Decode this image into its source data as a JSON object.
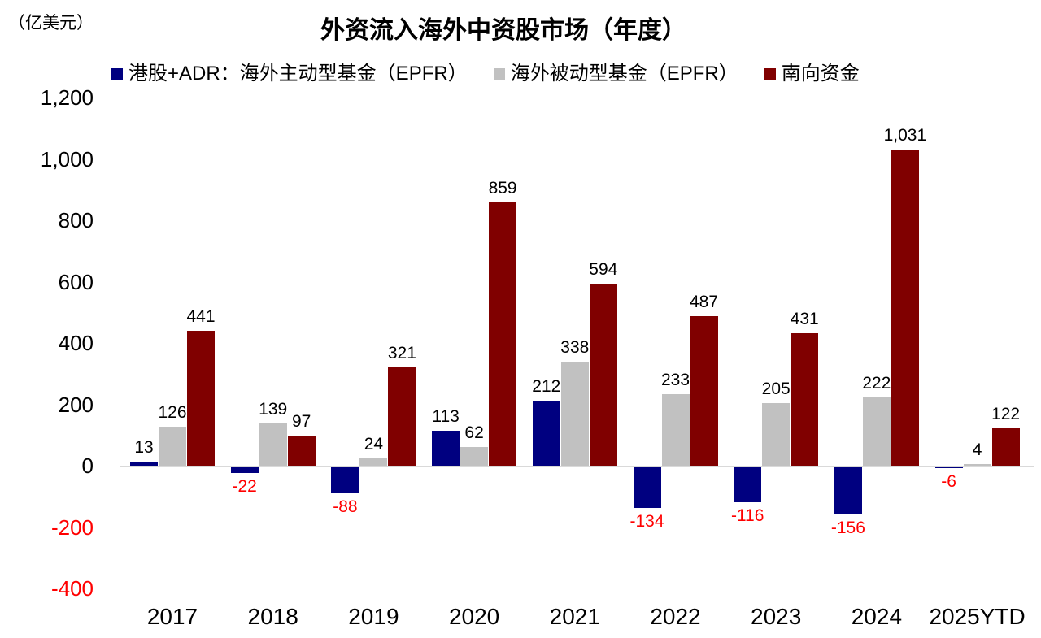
{
  "chart_data": {
    "type": "bar",
    "title": "外资流入海外中资股市场（年度）",
    "unit_label": "（亿美元）",
    "categories": [
      "2017",
      "2018",
      "2019",
      "2020",
      "2021",
      "2022",
      "2023",
      "2024",
      "2025YTD"
    ],
    "series": [
      {
        "name": "港股+ADR：海外主动型基金（EPFR）",
        "color": "#000080",
        "values": [
          13,
          -22,
          -88,
          113,
          212,
          -134,
          -116,
          -156,
          -6
        ],
        "labels": [
          "13",
          "-22",
          "-88",
          "113",
          "212",
          "-134",
          "-116",
          "-156",
          "-6"
        ]
      },
      {
        "name": "海外被动型基金（EPFR）",
        "color": "#C1C1C1",
        "values": [
          126,
          139,
          24,
          62,
          338,
          233,
          205,
          222,
          4
        ],
        "labels": [
          "126",
          "139",
          "24",
          "62",
          "338",
          "233",
          "205",
          "222",
          "4"
        ]
      },
      {
        "name": "南向资金",
        "color": "#800000",
        "values": [
          441,
          97,
          321,
          859,
          594,
          487,
          431,
          1031,
          122
        ],
        "labels": [
          "441",
          "97",
          "321",
          "859",
          "594",
          "487",
          "431",
          "1,031",
          "122"
        ]
      }
    ],
    "ylim": [
      -400,
      1200
    ],
    "ytick_values": [
      1200,
      1000,
      800,
      600,
      400,
      200,
      0,
      -200,
      -400
    ],
    "ytick_labels": [
      "1,200",
      "1,000",
      "800",
      "600",
      "400",
      "200",
      "0",
      "-200",
      "-400"
    ],
    "grid": false,
    "legend_position": "top",
    "label_color": "#000000",
    "negative_color": "#FF0000",
    "axis_line_color": "#D9D9D9"
  }
}
